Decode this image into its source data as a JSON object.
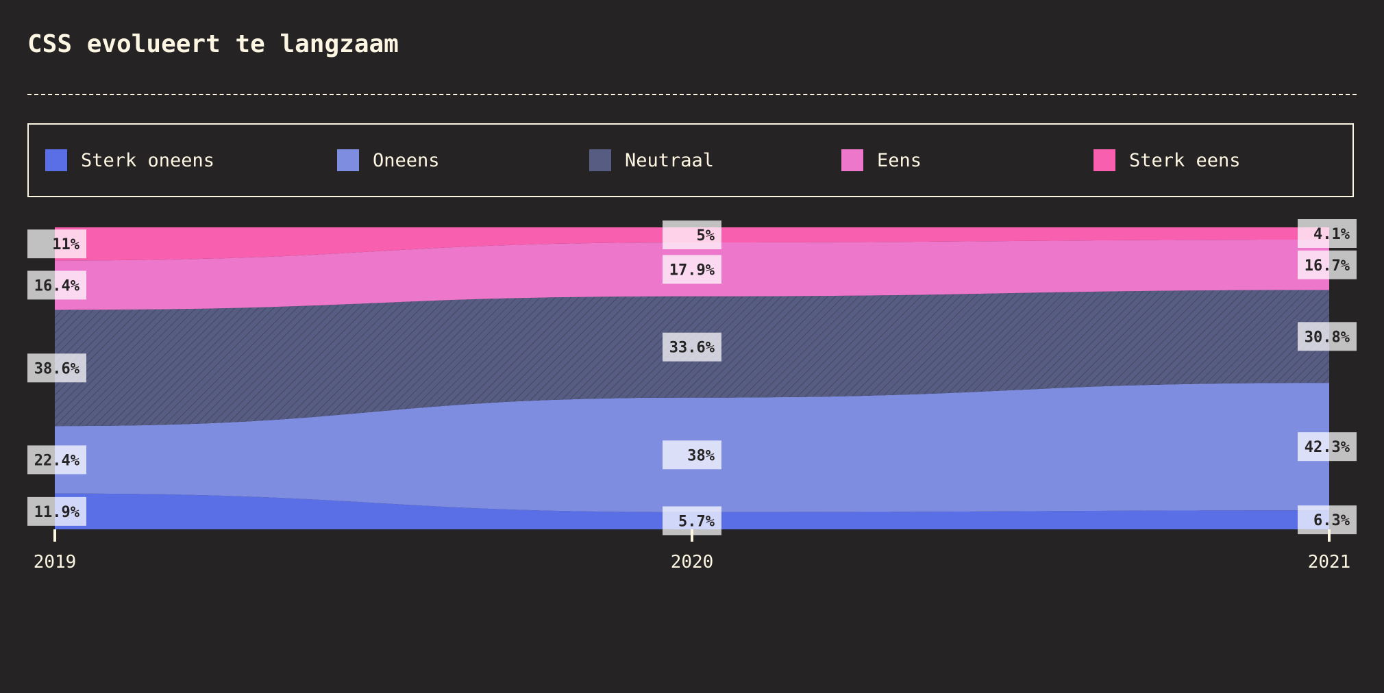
{
  "title": "CSS evolueert te langzaam",
  "legend": {
    "items": [
      {
        "label": "Sterk oneens",
        "color": "#5a6fe6"
      },
      {
        "label": "Oneens",
        "color": "#7e8de0"
      },
      {
        "label": "Neutraal",
        "color": "#565c82"
      },
      {
        "label": "Eens",
        "color": "#ec77cb"
      },
      {
        "label": "Sterk eens",
        "color": "#f95faf"
      }
    ]
  },
  "chart_data": {
    "type": "area",
    "stacked": true,
    "normalized": true,
    "title": "CSS evolueert te langzaam",
    "x": [
      "2019",
      "2020",
      "2021"
    ],
    "series": [
      {
        "name": "Sterk oneens",
        "color": "#5a6fe6",
        "values": [
          11.9,
          5.7,
          6.3
        ],
        "labels": [
          "11.9%",
          "5.7%",
          "6.3%"
        ]
      },
      {
        "name": "Oneens",
        "color": "#7e8de0",
        "values": [
          22.4,
          38,
          42.3
        ],
        "labels": [
          "22.4%",
          "38%",
          "42.3%"
        ]
      },
      {
        "name": "Neutraal",
        "color": "#565c82",
        "values": [
          38.6,
          33.6,
          30.8
        ],
        "labels": [
          "38.6%",
          "33.6%",
          "30.8%"
        ],
        "hatched": true
      },
      {
        "name": "Eens",
        "color": "#ec77cb",
        "values": [
          16.4,
          17.9,
          16.7
        ],
        "labels": [
          "16.4%",
          "17.9%",
          "16.7%"
        ]
      },
      {
        "name": "Sterk eens",
        "color": "#f95faf",
        "values": [
          11,
          5,
          4.1
        ],
        "labels": [
          "11%",
          "5%",
          "4.1%"
        ]
      }
    ],
    "ylim": [
      0,
      100
    ],
    "grid": false,
    "legend_position": "top"
  }
}
